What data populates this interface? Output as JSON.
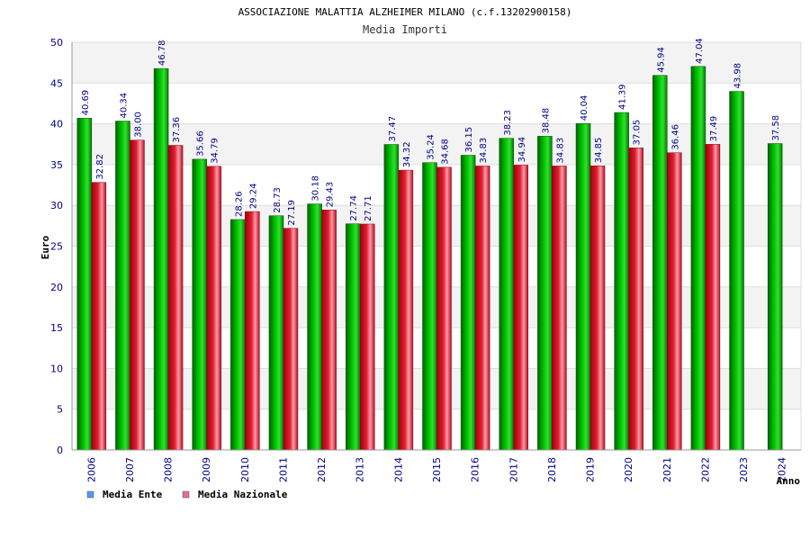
{
  "chart_data": {
    "type": "bar",
    "title": "ASSOCIAZIONE MALATTIA ALZHEIMER MILANO (c.f.13202900158)",
    "subtitle": "Media Importi",
    "xlabel": "Anno",
    "ylabel": "Euro",
    "ylim": [
      0,
      50
    ],
    "yticks": [
      "0",
      "5",
      "10",
      "15",
      "20",
      "25",
      "30",
      "35",
      "40",
      "45",
      "50"
    ],
    "grid": true,
    "legend_position": "bottom-left",
    "categories": [
      "2006",
      "2007",
      "2008",
      "2009",
      "2010",
      "2011",
      "2012",
      "2013",
      "2014",
      "2015",
      "2016",
      "2017",
      "2018",
      "2019",
      "2020",
      "2021",
      "2022",
      "2023",
      "2024"
    ],
    "series": [
      {
        "name": "Media Ente",
        "color": "#00b000",
        "legend_color": "#5599ee",
        "values": [
          40.69,
          40.34,
          46.78,
          35.66,
          28.26,
          28.73,
          30.18,
          27.74,
          37.47,
          35.24,
          36.15,
          38.23,
          38.48,
          40.04,
          41.39,
          45.94,
          47.04,
          43.98,
          37.58
        ],
        "labels": [
          "40.69",
          "40.34",
          "46.78",
          "35.66",
          "28.26",
          "28.73",
          "30.18",
          "27.74",
          "37.47",
          "35.24",
          "36.15",
          "38.23",
          "38.48",
          "40.04",
          "41.39",
          "45.94",
          "47.04",
          "43.98",
          "37.58"
        ]
      },
      {
        "name": "Media Nazionale",
        "color": "#e02030",
        "legend_color": "#e0709a",
        "values": [
          32.82,
          38.0,
          37.36,
          34.79,
          29.24,
          27.19,
          29.43,
          27.71,
          34.32,
          34.68,
          34.83,
          34.94,
          34.83,
          34.85,
          37.05,
          36.46,
          37.49,
          null,
          null
        ],
        "labels": [
          "32.82",
          "38.00",
          "37.36",
          "34.79",
          "29.24",
          "27.19",
          "29.43",
          "27.71",
          "34.32",
          "34.68",
          "34.83",
          "34.94",
          "34.83",
          "34.85",
          "37.05",
          "36.46",
          "37.49",
          null,
          null
        ]
      }
    ]
  }
}
